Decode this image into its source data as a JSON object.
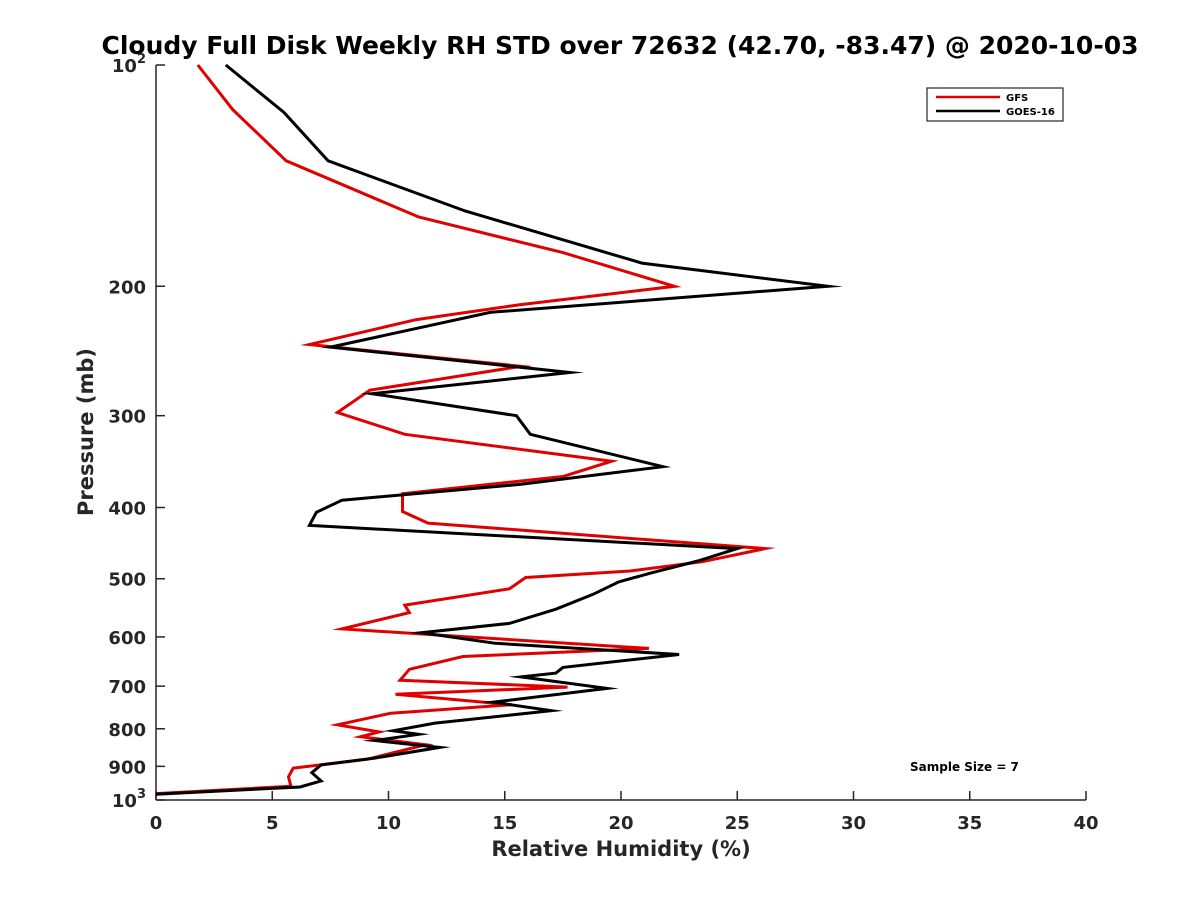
{
  "chart_data": {
    "type": "line",
    "title": "Cloudy Full Disk Weekly RH STD over 72632 (42.70, -83.47) @ 2020-10-03",
    "xlabel": "Relative Humidity (%)",
    "ylabel": "Pressure (mb)",
    "xlim": [
      0,
      40
    ],
    "ylim": [
      100,
      1000
    ],
    "y_scale": "log",
    "y_reversed": true,
    "grid": false,
    "legend_position": "top-right",
    "x_ticks": [
      "0",
      "5",
      "10",
      "15",
      "20",
      "25",
      "30",
      "35",
      "40"
    ],
    "y_ticks": [
      {
        "value": 100,
        "base": "10",
        "exp": "2"
      },
      {
        "value": 200,
        "label": "200"
      },
      {
        "value": 300,
        "label": "300"
      },
      {
        "value": 400,
        "label": "400"
      },
      {
        "value": 500,
        "label": "500"
      },
      {
        "value": 600,
        "label": "600"
      },
      {
        "value": 700,
        "label": "700"
      },
      {
        "value": 800,
        "label": "800"
      },
      {
        "value": 900,
        "label": "900"
      },
      {
        "value": 1000,
        "base": "10",
        "exp": "3"
      }
    ],
    "annotation": "Sample Size = 7",
    "series": [
      {
        "name": "GFS",
        "color": "#e00000",
        "points": [
          [
            1.8,
            100
          ],
          [
            3.3,
            115
          ],
          [
            5.6,
            135
          ],
          [
            11.3,
            161
          ],
          [
            17.5,
            180
          ],
          [
            22.3,
            200
          ],
          [
            15.6,
            212
          ],
          [
            11.2,
            222
          ],
          [
            6.6,
            240
          ],
          [
            15.7,
            257
          ],
          [
            9.2,
            277
          ],
          [
            7.8,
            297
          ],
          [
            10.7,
            318
          ],
          [
            19.6,
            346
          ],
          [
            17.5,
            363
          ],
          [
            10.6,
            383
          ],
          [
            10.6,
            405
          ],
          [
            11.7,
            420
          ],
          [
            26.2,
            455
          ],
          [
            23.5,
            474
          ],
          [
            20.4,
            488
          ],
          [
            15.9,
            498
          ],
          [
            15.2,
            516
          ],
          [
            10.7,
            543
          ],
          [
            10.9,
            556
          ],
          [
            8.0,
            585
          ],
          [
            21.2,
            622
          ],
          [
            13.2,
            638
          ],
          [
            10.9,
            664
          ],
          [
            10.5,
            687
          ],
          [
            17.7,
            702
          ],
          [
            10.3,
            718
          ],
          [
            15.3,
            742
          ],
          [
            10.1,
            762
          ],
          [
            7.8,
            790
          ],
          [
            9.6,
            808
          ],
          [
            8.8,
            820
          ],
          [
            11.6,
            841
          ],
          [
            9.1,
            880
          ],
          [
            5.9,
            905
          ],
          [
            5.7,
            930
          ],
          [
            5.8,
            958
          ],
          [
            0,
            980
          ]
        ]
      },
      {
        "name": "GOES-16",
        "color": "#000000",
        "points": [
          [
            3.0,
            100
          ],
          [
            5.5,
            116
          ],
          [
            7.4,
            135
          ],
          [
            13.3,
            158
          ],
          [
            20.9,
            186
          ],
          [
            28.9,
            200
          ],
          [
            14.4,
            217
          ],
          [
            7.5,
            242
          ],
          [
            17.8,
            262
          ],
          [
            9.3,
            280
          ],
          [
            15.5,
            300
          ],
          [
            16.1,
            318
          ],
          [
            21.8,
            352
          ],
          [
            15.7,
            372
          ],
          [
            8.0,
            391
          ],
          [
            6.9,
            406
          ],
          [
            6.6,
            423
          ],
          [
            25.0,
            455
          ],
          [
            23.3,
            473
          ],
          [
            21.3,
            491
          ],
          [
            19.9,
            505
          ],
          [
            18.8,
            525
          ],
          [
            17.2,
            550
          ],
          [
            15.2,
            575
          ],
          [
            11.4,
            592
          ],
          [
            14.6,
            612
          ],
          [
            22.5,
            634
          ],
          [
            17.5,
            660
          ],
          [
            17.2,
            672
          ],
          [
            15.7,
            680
          ],
          [
            19.4,
            705
          ],
          [
            14.5,
            736
          ],
          [
            17.0,
            756
          ],
          [
            12.0,
            786
          ],
          [
            10.2,
            805
          ],
          [
            11.3,
            814
          ],
          [
            9.4,
            830
          ],
          [
            12.2,
            848
          ],
          [
            9.4,
            877
          ],
          [
            7.1,
            896
          ],
          [
            6.7,
            918
          ],
          [
            7.1,
            942
          ],
          [
            6.2,
            960
          ],
          [
            0,
            982
          ]
        ]
      }
    ]
  }
}
